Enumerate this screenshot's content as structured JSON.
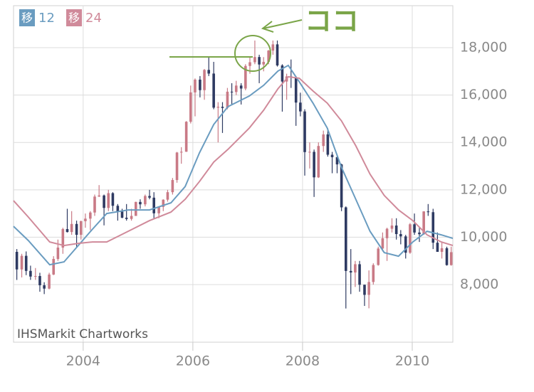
{
  "chart_data": {
    "type": "candlestick",
    "xlim": [
      2002.73,
      2010.74
    ],
    "xticks": [
      2004,
      2006,
      2008,
      2010
    ],
    "ylim": [
      5570,
      19770
    ],
    "yticks": [
      {
        "value": 8000,
        "label": "8,000"
      },
      {
        "value": 10000,
        "label": "10,000"
      },
      {
        "value": 12000,
        "label": "12,000"
      },
      {
        "value": 14000,
        "label": "14,000"
      },
      {
        "value": 16000,
        "label": "16,000"
      },
      {
        "value": 18000,
        "label": "18,000"
      }
    ],
    "grid": true,
    "watermark": "IHSMarkit Chartworks",
    "annotation": "ココ",
    "up_color": "#c97a86",
    "down_color": "#2e3a62",
    "x": [
      2002.79,
      2002.88,
      2002.96,
      2003.04,
      2003.13,
      2003.21,
      2003.29,
      2003.38,
      2003.46,
      2003.54,
      2003.63,
      2003.71,
      2003.79,
      2003.88,
      2003.96,
      2004.04,
      2004.13,
      2004.21,
      2004.29,
      2004.38,
      2004.46,
      2004.54,
      2004.63,
      2004.71,
      2004.79,
      2004.88,
      2004.96,
      2005.04,
      2005.13,
      2005.21,
      2005.29,
      2005.38,
      2005.46,
      2005.54,
      2005.63,
      2005.71,
      2005.79,
      2005.88,
      2005.96,
      2006.04,
      2006.13,
      2006.21,
      2006.29,
      2006.38,
      2006.46,
      2006.54,
      2006.63,
      2006.71,
      2006.79,
      2006.88,
      2006.96,
      2007.04,
      2007.13,
      2007.21,
      2007.29,
      2007.38,
      2007.46,
      2007.54,
      2007.63,
      2007.71,
      2007.79,
      2007.88,
      2007.96,
      2008.04,
      2008.13,
      2008.21,
      2008.29,
      2008.38,
      2008.46,
      2008.54,
      2008.63,
      2008.71,
      2008.79,
      2008.88,
      2008.96,
      2009.04,
      2009.13,
      2009.21,
      2009.29,
      2009.38,
      2009.46,
      2009.54,
      2009.63,
      2009.71,
      2009.79,
      2009.88,
      2009.96,
      2010.04,
      2010.13,
      2010.21,
      2010.29,
      2010.38,
      2010.46,
      2010.54,
      2010.63,
      2010.71
    ],
    "open": [
      9383,
      8640,
      9215,
      8579,
      8340,
      8363,
      7973,
      7831,
      8425,
      9083,
      9563,
      10344,
      10219,
      10560,
      10101,
      10677,
      10784,
      11042,
      11715,
      11762,
      11236,
      11859,
      11326,
      11082,
      10824,
      10771,
      10899,
      11489,
      11388,
      11740,
      11669,
      11009,
      11277,
      11584,
      11900,
      12414,
      13574,
      13607,
      14872,
      16111,
      16650,
      16206,
      17060,
      16906,
      15468,
      15505,
      15457,
      16141,
      16128,
      16399,
      16274,
      17226,
      17383,
      17604,
      17288,
      17400,
      17876,
      18138,
      17249,
      16570,
      16786,
      16737,
      15681,
      15308,
      13592,
      13603,
      12526,
      13850,
      14339,
      13481,
      13377,
      13073,
      11260,
      8577,
      8512,
      8860,
      7994,
      7568,
      8110,
      8828,
      9523,
      9958,
      10357,
      10493,
      10133,
      10035,
      9346,
      10546,
      10198,
      10126,
      11090,
      11057,
      9769,
      9383,
      9537,
      8824
    ],
    "high": [
      9500,
      9300,
      9400,
      8800,
      8700,
      8500,
      8100,
      8500,
      9200,
      9900,
      10400,
      11200,
      11100,
      10700,
      10700,
      11000,
      11100,
      11800,
      12200,
      11800,
      12000,
      11900,
      11400,
      11200,
      11400,
      11200,
      11500,
      11600,
      11800,
      12000,
      11900,
      11300,
      11600,
      12000,
      12500,
      13600,
      13800,
      14900,
      16400,
      16700,
      16800,
      17100,
      17600,
      17400,
      15700,
      15700,
      16300,
      16500,
      16600,
      16500,
      17300,
      17600,
      18300,
      17700,
      17600,
      17900,
      18300,
      18300,
      17300,
      16900,
      17500,
      16800,
      16100,
      15400,
      14000,
      13700,
      14000,
      14500,
      14600,
      13600,
      13500,
      13100,
      11300,
      9500,
      9000,
      9000,
      8000,
      8600,
      8900,
      9600,
      10200,
      10400,
      10800,
      10800,
      10300,
      10100,
      10600,
      11000,
      10400,
      11100,
      11400,
      11200,
      10200,
      9800,
      9600,
      9600
    ],
    "low": [
      8197,
      8303,
      8400,
      8200,
      8200,
      7700,
      7600,
      7800,
      8400,
      9000,
      9300,
      10200,
      10100,
      9600,
      9900,
      10400,
      10300,
      10900,
      11700,
      10500,
      11100,
      11100,
      10700,
      10800,
      10700,
      10700,
      10900,
      11200,
      11300,
      11600,
      10800,
      10800,
      11100,
      11500,
      11800,
      12300,
      13100,
      13600,
      14800,
      15100,
      15900,
      15800,
      16800,
      15400,
      14000,
      14400,
      15400,
      15600,
      16000,
      15600,
      16200,
      16900,
      17300,
      16500,
      17000,
      17300,
      17700,
      17200,
      15300,
      15800,
      16300,
      14700,
      15100,
      12600,
      12900,
      11700,
      12500,
      13600,
      13400,
      12700,
      12700,
      11100,
      6994,
      7600,
      7900,
      7700,
      7100,
      7000,
      8000,
      8800,
      9400,
      9000,
      10200,
      9900,
      9700,
      9100,
      9300,
      10100,
      9800,
      10100,
      10900,
      9500,
      9400,
      9100,
      8800,
      8800
    ],
    "close": [
      8640,
      9215,
      8579,
      8340,
      8363,
      7973,
      7831,
      8425,
      9083,
      9563,
      10344,
      10219,
      10560,
      10101,
      10677,
      10784,
      11042,
      11715,
      11762,
      11236,
      11859,
      11326,
      11082,
      10824,
      10771,
      10899,
      11489,
      11388,
      11740,
      11669,
      11009,
      11277,
      11584,
      11900,
      12414,
      13574,
      13607,
      14872,
      16111,
      16650,
      16206,
      17060,
      16906,
      15468,
      15505,
      15457,
      16141,
      16128,
      16399,
      16274,
      17226,
      17383,
      17604,
      17288,
      17400,
      17876,
      18138,
      17249,
      16570,
      16786,
      16737,
      15681,
      15308,
      13592,
      13603,
      12526,
      13850,
      14339,
      13481,
      13377,
      13073,
      11260,
      8577,
      8512,
      8860,
      7994,
      7568,
      8110,
      8828,
      9523,
      9958,
      10357,
      10493,
      10133,
      10035,
      9346,
      10546,
      10198,
      10126,
      11090,
      11057,
      9769,
      9383,
      9537,
      8824,
      9369
    ],
    "series": [
      {
        "name": "12",
        "badge": "移",
        "color": "#6a9cc0",
        "x": [
          2002.73,
          2003.0,
          2003.39,
          2003.65,
          2003.91,
          2004.17,
          2004.43,
          2004.82,
          2005.21,
          2005.6,
          2005.86,
          2006.12,
          2006.38,
          2006.64,
          2007.03,
          2007.29,
          2007.55,
          2007.74,
          2007.94,
          2008.19,
          2008.45,
          2008.71,
          2008.97,
          2009.23,
          2009.49,
          2009.75,
          2010.01,
          2010.27,
          2010.53,
          2010.74
        ],
        "values": [
          10460,
          9860,
          8840,
          8960,
          9650,
          10340,
          11000,
          11150,
          11150,
          11450,
          12140,
          13560,
          14760,
          15510,
          15960,
          16410,
          17010,
          17250,
          16560,
          15660,
          14610,
          12950,
          11600,
          10250,
          9350,
          9200,
          9800,
          10250,
          10100,
          9950
        ]
      },
      {
        "name": "24",
        "badge": "移",
        "color": "#d08a9a",
        "x": [
          2002.73,
          2003.0,
          2003.39,
          2003.65,
          2003.91,
          2004.17,
          2004.43,
          2004.82,
          2005.21,
          2005.6,
          2005.86,
          2006.12,
          2006.38,
          2006.64,
          2007.03,
          2007.29,
          2007.55,
          2007.74,
          2007.94,
          2008.19,
          2008.45,
          2008.71,
          2008.97,
          2009.23,
          2009.49,
          2009.75,
          2010.01,
          2010.27,
          2010.53,
          2010.74
        ],
        "values": [
          11540,
          10850,
          9800,
          9650,
          9740,
          9800,
          9800,
          10250,
          10700,
          11060,
          11600,
          12350,
          13170,
          13710,
          14610,
          15360,
          16260,
          16770,
          16710,
          16170,
          15660,
          14910,
          13860,
          12660,
          11760,
          11150,
          10700,
          10100,
          9800,
          9650
        ]
      }
    ]
  }
}
